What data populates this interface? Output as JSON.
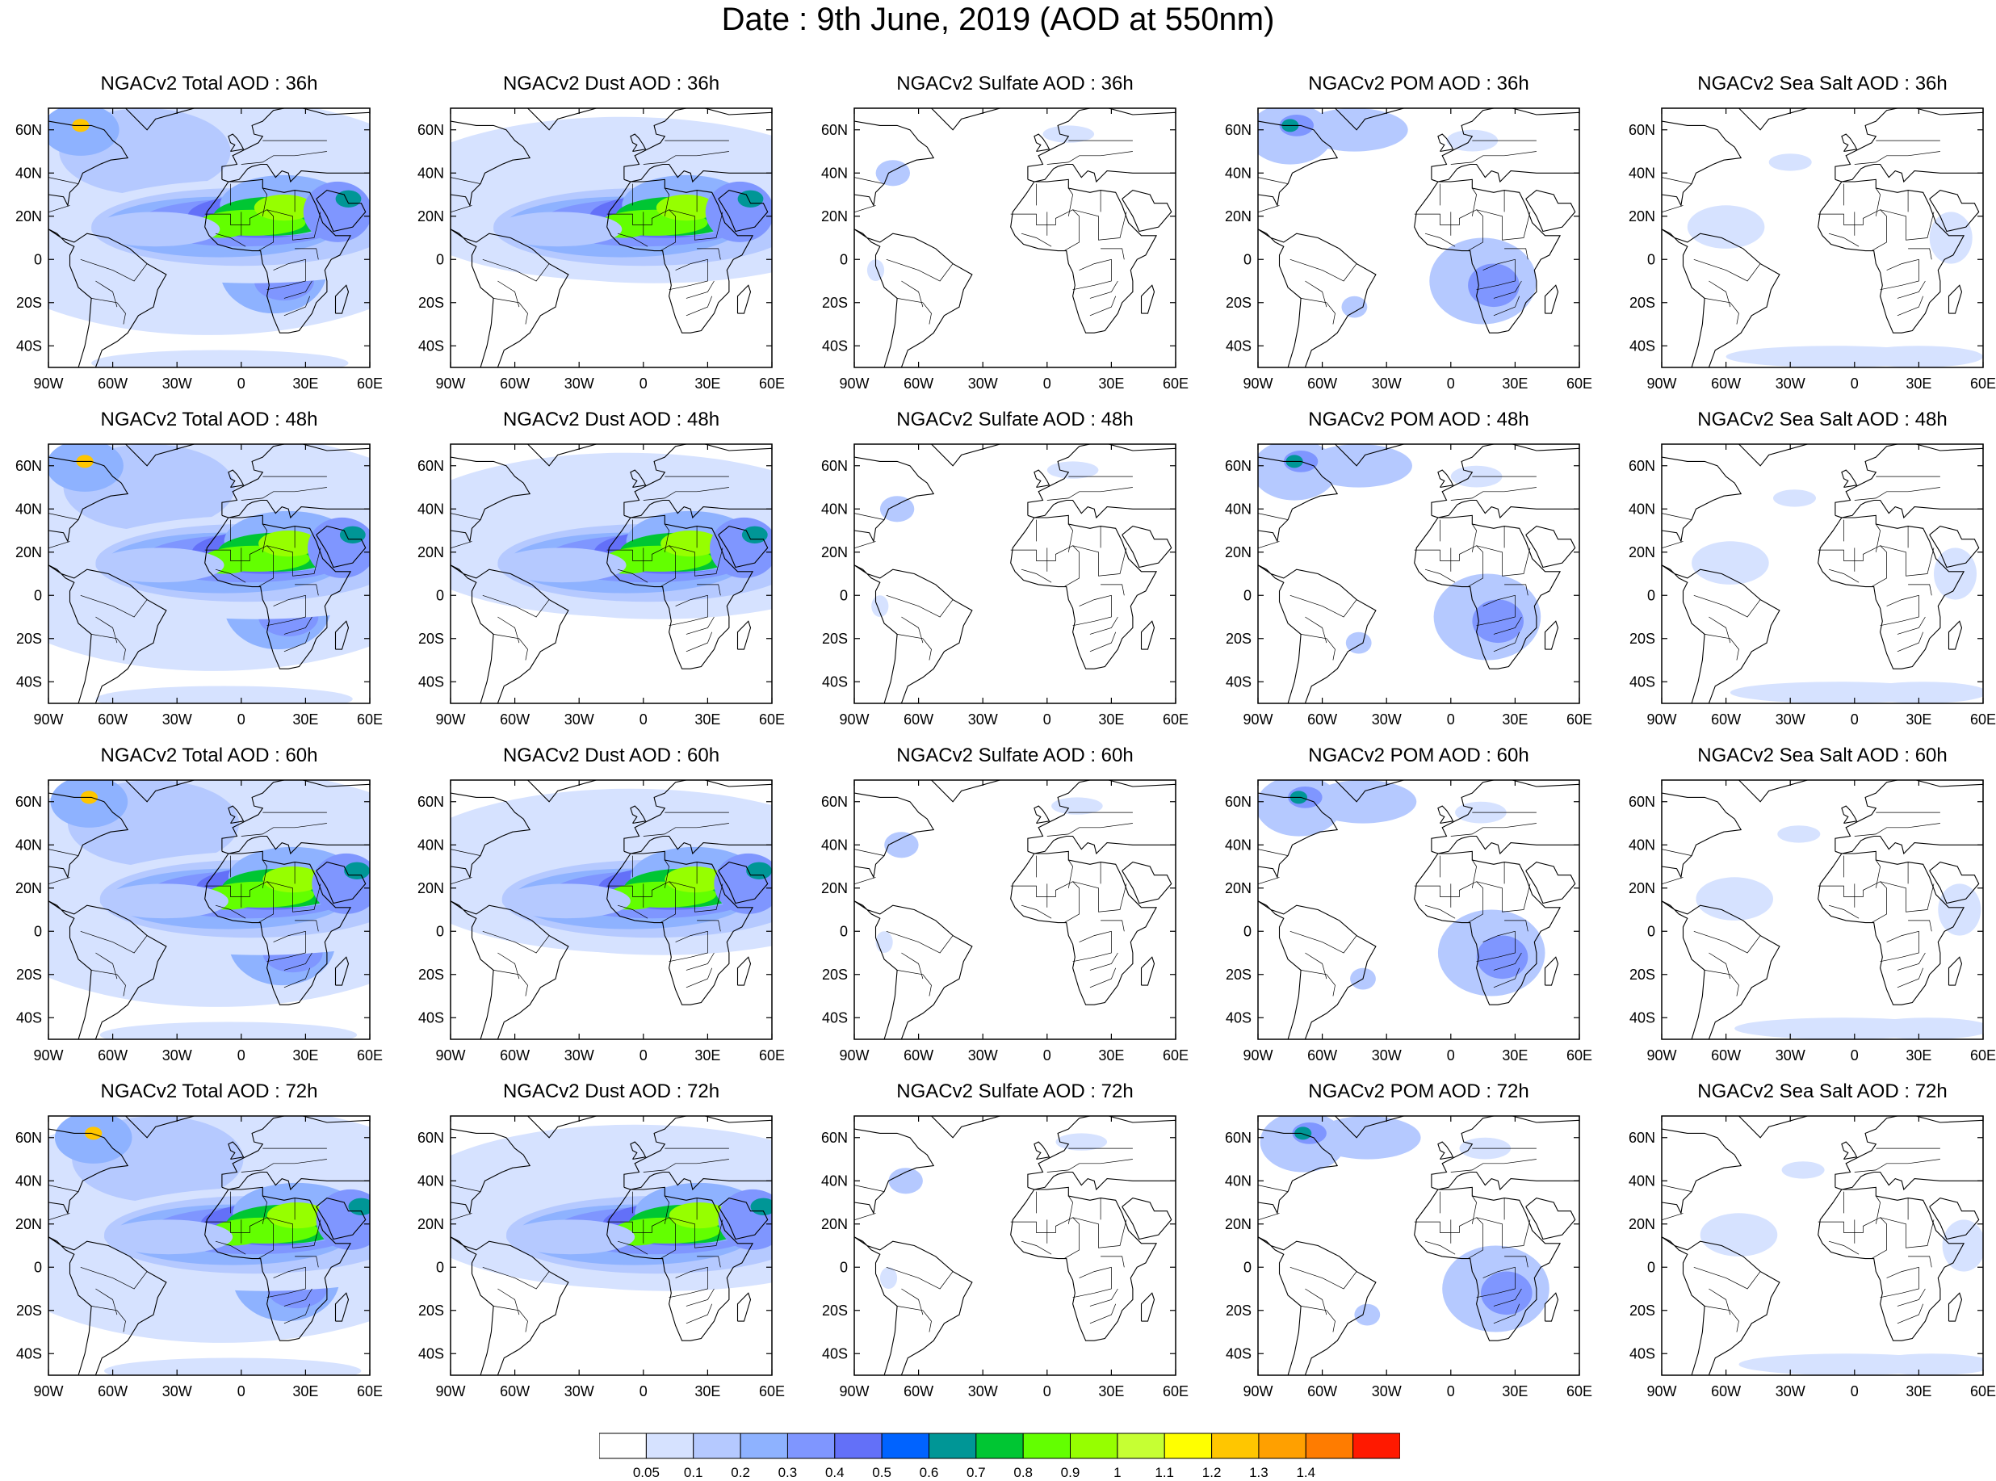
{
  "title": "Date : 9th June, 2019 (AOD at 550nm)",
  "lat_ticks": [
    "60N",
    "40N",
    "20N",
    "0",
    "20S",
    "40S"
  ],
  "lon_ticks": [
    "90W",
    "60W",
    "30W",
    "0",
    "30E",
    "60E"
  ],
  "map_extent": {
    "lon_min": -90,
    "lon_max": 60,
    "lat_min": -50,
    "lat_max": 70
  },
  "columns": [
    {
      "species": "total",
      "titles": [
        "NGACv2 Total AOD : 36h",
        "NGACv2 Total AOD : 48h",
        "NGACv2 Total AOD : 60h",
        "NGACv2 Total AOD : 72h"
      ]
    },
    {
      "species": "dust",
      "titles": [
        "NGACv2 Dust AOD : 36h",
        "NGACv2 Dust AOD : 48h",
        "NGACv2 Dust AOD : 60h",
        "NGACv2 Dust AOD : 72h"
      ]
    },
    {
      "species": "sulfate",
      "titles": [
        "NGACv2 Sulfate AOD : 36h",
        "NGACv2 Sulfate AOD : 48h",
        "NGACv2 Sulfate AOD : 60h",
        "NGACv2 Sulfate AOD : 72h"
      ]
    },
    {
      "species": "pom",
      "titles": [
        "NGACv2 POM AOD : 36h",
        "NGACv2 POM AOD : 48h",
        "NGACv2 POM AOD : 60h",
        "NGACv2 POM AOD : 72h"
      ]
    },
    {
      "species": "seasalt",
      "titles": [
        "NGACv2 Sea Salt AOD : 36h",
        "NGACv2 Sea Salt AOD : 48h",
        "NGACv2 Sea Salt AOD : 60h",
        "NGACv2 Sea Salt  AOD : 72h"
      ]
    }
  ],
  "colorbar": {
    "labels": [
      "0.05",
      "0.1",
      "0.2",
      "0.3",
      "0.4",
      "0.5",
      "0.6",
      "0.7",
      "0.8",
      "0.9",
      "1",
      "1.1",
      "1.2",
      "1.3",
      "1.4"
    ],
    "colors": [
      "#ffffff",
      "#d6e2ff",
      "#b5c9ff",
      "#8eb2ff",
      "#7f96ff",
      "#6370f8",
      "#0063ff",
      "#009696",
      "#00c633",
      "#63ff00",
      "#96ff00",
      "#c6ff33",
      "#ffff00",
      "#ffc600",
      "#ffa000",
      "#ff7c00",
      "#ff1900"
    ]
  }
}
